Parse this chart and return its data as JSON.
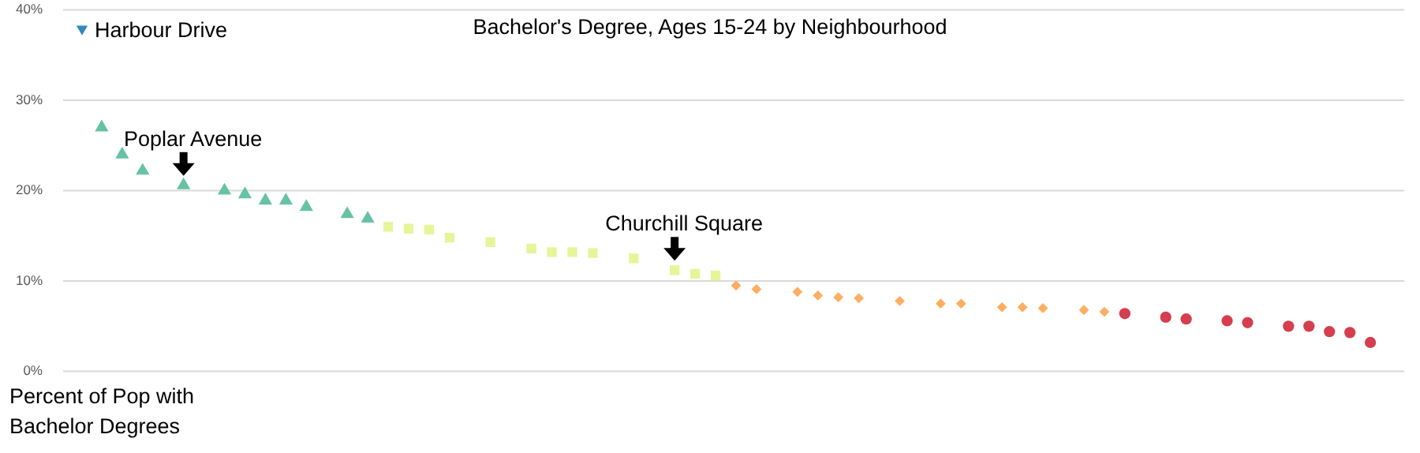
{
  "chart_data": {
    "type": "scatter",
    "title": "Bachelor's Degree, Ages 15-24 by Neighbourhood",
    "ylabel": "Percent of Pop with Bachelor Degrees",
    "categories": [
      null,
      null,
      null,
      null,
      null,
      null,
      null,
      null,
      null,
      null,
      null,
      null,
      null,
      null,
      null,
      null,
      null,
      null,
      null,
      null,
      null,
      null,
      null,
      null,
      null,
      null,
      null,
      null,
      null,
      null,
      null,
      null,
      null,
      null,
      null,
      null,
      null,
      null,
      null,
      null,
      null,
      null,
      null,
      null,
      null,
      null,
      null,
      null,
      null,
      null,
      null,
      null,
      null,
      null,
      null,
      null,
      null,
      null,
      null,
      null,
      null,
      null,
      null,
      null,
      null
    ],
    "series": [
      {
        "color": "#66c2a5",
        "marker": "triangle",
        "values": [
          null,
          27,
          24,
          22.2,
          null,
          20.6,
          null,
          20,
          19.6,
          18.9,
          18.9,
          18.2,
          null,
          17.4,
          16.9,
          null,
          null,
          null,
          null,
          null,
          null,
          null,
          null,
          null,
          null,
          null,
          null,
          null,
          null,
          null,
          null,
          null,
          null,
          null,
          null,
          null,
          null,
          null,
          null,
          null,
          null,
          null,
          null,
          null,
          null,
          null,
          null,
          null,
          null,
          null,
          null,
          null,
          null,
          null,
          null,
          null,
          null,
          null,
          null,
          null,
          null,
          null,
          null,
          null,
          null
        ]
      },
      {
        "color": "#e6f598",
        "marker": "square",
        "values": [
          null,
          null,
          null,
          null,
          null,
          null,
          null,
          null,
          null,
          null,
          null,
          null,
          null,
          null,
          null,
          16,
          15.8,
          15.7,
          14.8,
          null,
          14.3,
          null,
          13.6,
          13.2,
          13.2,
          13.1,
          null,
          12.5,
          null,
          11.2,
          10.8,
          10.6,
          null,
          null,
          null,
          null,
          null,
          null,
          null,
          null,
          null,
          null,
          null,
          null,
          null,
          null,
          null,
          null,
          null,
          null,
          null,
          null,
          null,
          null,
          null,
          null,
          null,
          null,
          null,
          null,
          null,
          null,
          null,
          null,
          null
        ]
      },
      {
        "color": "#fdae61",
        "marker": "diamond",
        "values": [
          null,
          null,
          null,
          null,
          null,
          null,
          null,
          null,
          null,
          null,
          null,
          null,
          null,
          null,
          null,
          null,
          null,
          null,
          null,
          null,
          null,
          null,
          null,
          null,
          null,
          null,
          null,
          null,
          null,
          null,
          null,
          null,
          9.5,
          9.1,
          null,
          8.8,
          8.4,
          8.2,
          8.1,
          null,
          7.8,
          null,
          7.5,
          7.5,
          null,
          7.1,
          7.1,
          7,
          null,
          6.8,
          6.6,
          null,
          null,
          null,
          null,
          null,
          null,
          null,
          null,
          null,
          null,
          null,
          null,
          null,
          null
        ]
      },
      {
        "color": "#d53e4f",
        "marker": "circle",
        "values": [
          null,
          null,
          null,
          null,
          null,
          null,
          null,
          null,
          null,
          null,
          null,
          null,
          null,
          null,
          null,
          null,
          null,
          null,
          null,
          null,
          null,
          null,
          null,
          null,
          null,
          null,
          null,
          null,
          null,
          null,
          null,
          null,
          null,
          null,
          null,
          null,
          null,
          null,
          null,
          null,
          null,
          null,
          null,
          null,
          null,
          null,
          null,
          null,
          null,
          null,
          null,
          6.4,
          null,
          6,
          5.8,
          null,
          5.6,
          5.4,
          null,
          5,
          5,
          4.4,
          4.3,
          3.2,
          null
        ]
      },
      {
        "name": "Harbour Drive",
        "color": "#3288bd",
        "marker": "triangle-down",
        "values": [
          null,
          null,
          null,
          null,
          null,
          null,
          null,
          null,
          null,
          null,
          null,
          null,
          null,
          null,
          null,
          null,
          null,
          null,
          null,
          null,
          null,
          null,
          null,
          null,
          null,
          null,
          null,
          null,
          null,
          null,
          null,
          null,
          null,
          null,
          null,
          null,
          null,
          null,
          null,
          null,
          null,
          null,
          null,
          null,
          null,
          null,
          null,
          null,
          null,
          null,
          null,
          null,
          null,
          null,
          null,
          null,
          null,
          null,
          null,
          null,
          null,
          null,
          null,
          null,
          null
        ]
      }
    ],
    "ylim": [
      0,
      40
    ],
    "yticks": [
      {
        "value": 0,
        "label": "0%"
      },
      {
        "value": 10,
        "label": "10%"
      },
      {
        "value": 20,
        "label": "20%"
      },
      {
        "value": 30,
        "label": "30%"
      },
      {
        "value": 40,
        "label": "40%"
      }
    ],
    "grid": "y",
    "legend": "top left",
    "tick_labels": "y",
    "annotations": [
      {
        "text": "Poplar Avenue",
        "y": 20.6
      },
      {
        "text": "Churchill Square",
        "y": 11.2
      }
    ]
  }
}
